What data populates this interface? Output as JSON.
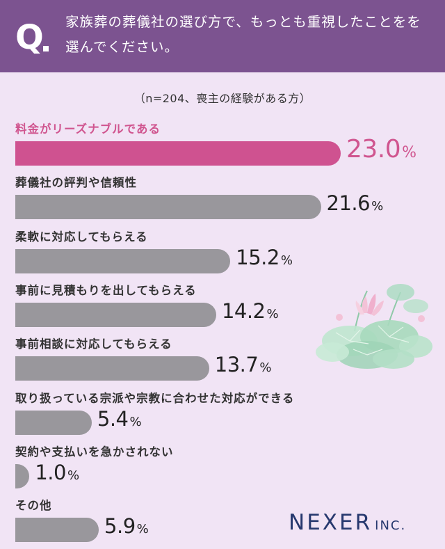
{
  "question": {
    "mark": "Q",
    "text": "家族葬の葬儀社の選び方で、もっとも重視したことをを選んでください。"
  },
  "subtitle": "（n=204、喪主の経験がある方）",
  "colors": {
    "header": "#7c5390",
    "highlight": "#cf5290",
    "bar": "#99979c",
    "background": "#f1e4f5",
    "logo": "#26386e"
  },
  "chart_data": {
    "type": "bar",
    "orientation": "horizontal",
    "unit": "%",
    "categories": [
      "料金がリーズナブルである",
      "葬儀社の評判や信頼性",
      "柔軟に対応してもらえる",
      "事前に見積もりを出してもらえる",
      "事前相談に対応してもらえる",
      "取り扱っている宗派や宗教に合わせた対応ができる",
      "契約や支払いを急かされない",
      "その他"
    ],
    "values": [
      23.0,
      21.6,
      15.2,
      14.2,
      13.7,
      5.4,
      1.0,
      5.9
    ],
    "value_labels": [
      "23.0",
      "21.6",
      "15.2",
      "14.2",
      "13.7",
      "5.4",
      "1.0",
      "5.9"
    ],
    "highlight_index": 0,
    "xlim": [
      0,
      23.0
    ]
  },
  "logo": {
    "main": "NEXER",
    "sub": "INC."
  }
}
